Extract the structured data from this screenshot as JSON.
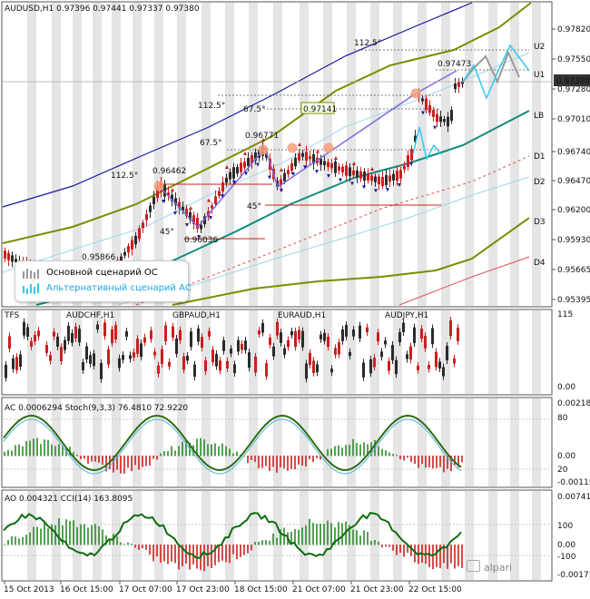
{
  "main": {
    "header": "AUDUSD,H1  0.97396 0.97441 0.97337 0.97380",
    "price_ticks": [
      "0.97820",
      "0.97550",
      "0.97280",
      "0.97010",
      "0.96740",
      "0.96470",
      "0.96200",
      "0.95930",
      "0.95665",
      "0.95395"
    ],
    "current_price": "0.97380",
    "levels": [
      "U2",
      "U1",
      "LB",
      "D1",
      "D2",
      "D3",
      "D4"
    ],
    "annotations": [
      "112.5°",
      "0.97473",
      "112.5°",
      "67.5°",
      "0.97141",
      "0.96771",
      "67.5°",
      "0.96462",
      "112.5°",
      "45°",
      "45°",
      "0.96036",
      "0.95866"
    ],
    "legend": {
      "main_scenario": "Основной сценарий ОС",
      "alt_scenario": "Альтернативный сценарий АС"
    }
  },
  "tfs_panel": {
    "name": "TFS",
    "symbols": [
      "AUDCHF,H1",
      "GBPAUD,H1",
      "EURAUD,H1",
      "AUDJPY,H1"
    ],
    "ticks": [
      "115",
      "0.00"
    ]
  },
  "ac_panel": {
    "header": "AC 0.0006294  Stoch(9,3,3) 76.4810 72.9220",
    "ticks": [
      "0.002180",
      "80",
      "0.00",
      "20",
      "-0.001151"
    ]
  },
  "ao_panel": {
    "header": "AO 0.004321  CCI(14) 163.8095",
    "ticks": [
      "0.007413",
      "100",
      "0.00",
      "-100",
      "-0.001711"
    ]
  },
  "time_axis": [
    "15 Oct 2013",
    "16 Oct 15:00",
    "17 Oct 07:00",
    "17 Oct 23:00",
    "18 Oct 15:00",
    "21 Oct 07:00",
    "21 Oct 23:00",
    "22 Oct 15:00"
  ],
  "brand": "alpari",
  "colors": {
    "bull": "#2b2b2b",
    "bear": "#cc1f1f",
    "ma_teal": "#0f8c7e",
    "olive": "#7d8c00",
    "blue": "#1a1aa0",
    "main_scn": "#9a9a9a",
    "alt_scn": "#35c7ee"
  }
}
